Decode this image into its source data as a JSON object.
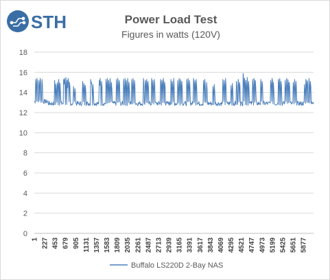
{
  "logo": {
    "text": "STH",
    "color": "#3a6ea5"
  },
  "chart_data": {
    "type": "line",
    "title": "Power Load Test",
    "subtitle": "Figures in watts (120V)",
    "xlabel": "",
    "ylabel": "",
    "ylim": [
      0,
      18
    ],
    "yticks": [
      0,
      2,
      4,
      6,
      8,
      10,
      12,
      14,
      16,
      18
    ],
    "xlim": [
      1,
      6100
    ],
    "xticks": [
      "1",
      "227",
      "453",
      "679",
      "905",
      "1131",
      "1357",
      "1583",
      "1809",
      "2035",
      "2261",
      "2487",
      "2713",
      "2939",
      "3165",
      "3391",
      "3617",
      "3843",
      "4069",
      "4295",
      "4521",
      "4747",
      "4973",
      "5199",
      "5425",
      "5651",
      "5877"
    ],
    "grid": true,
    "legend_position": "bottom",
    "series": [
      {
        "name": "Buffalo LS220D 2-Bay NAS",
        "color": "#4a7ebb",
        "baseline": 12.9,
        "spikes": [
          {
            "x": 30,
            "y": 15.3
          },
          {
            "x": 60,
            "y": 15.4
          },
          {
            "x": 95,
            "y": 15.2
          },
          {
            "x": 130,
            "y": 15.4
          },
          {
            "x": 165,
            "y": 15.3
          },
          {
            "x": 440,
            "y": 15.2
          },
          {
            "x": 470,
            "y": 14.8
          },
          {
            "x": 500,
            "y": 15.0
          },
          {
            "x": 530,
            "y": 15.3
          },
          {
            "x": 560,
            "y": 14.9
          },
          {
            "x": 640,
            "y": 15.3
          },
          {
            "x": 660,
            "y": 15.4
          },
          {
            "x": 690,
            "y": 15.5
          },
          {
            "x": 720,
            "y": 15.2
          },
          {
            "x": 740,
            "y": 15.4
          },
          {
            "x": 770,
            "y": 15.0
          },
          {
            "x": 860,
            "y": 14.6
          },
          {
            "x": 890,
            "y": 14.4
          },
          {
            "x": 1060,
            "y": 15.1
          },
          {
            "x": 1085,
            "y": 14.9
          },
          {
            "x": 1110,
            "y": 14.7
          },
          {
            "x": 1230,
            "y": 15.3
          },
          {
            "x": 1250,
            "y": 15.0
          },
          {
            "x": 1280,
            "y": 14.8
          },
          {
            "x": 1420,
            "y": 15.2
          },
          {
            "x": 1440,
            "y": 15.4
          },
          {
            "x": 1470,
            "y": 15.1
          },
          {
            "x": 1570,
            "y": 15.3
          },
          {
            "x": 1600,
            "y": 15.4
          },
          {
            "x": 1630,
            "y": 15.2
          },
          {
            "x": 1660,
            "y": 15.4
          },
          {
            "x": 1690,
            "y": 15.0
          },
          {
            "x": 1790,
            "y": 15.3
          },
          {
            "x": 1820,
            "y": 15.4
          },
          {
            "x": 1850,
            "y": 15.2
          },
          {
            "x": 1950,
            "y": 15.3
          },
          {
            "x": 1980,
            "y": 15.4
          },
          {
            "x": 2010,
            "y": 15.2
          },
          {
            "x": 2040,
            "y": 15.4
          },
          {
            "x": 2070,
            "y": 15.0
          },
          {
            "x": 2130,
            "y": 15.3
          },
          {
            "x": 2160,
            "y": 15.4
          },
          {
            "x": 2190,
            "y": 15.2
          },
          {
            "x": 2390,
            "y": 15.4
          },
          {
            "x": 2420,
            "y": 15.2
          },
          {
            "x": 2450,
            "y": 15.3
          },
          {
            "x": 2480,
            "y": 15.1
          },
          {
            "x": 2560,
            "y": 15.4
          },
          {
            "x": 2590,
            "y": 15.2
          },
          {
            "x": 2620,
            "y": 15.3
          },
          {
            "x": 2760,
            "y": 15.3
          },
          {
            "x": 2790,
            "y": 15.2
          },
          {
            "x": 2820,
            "y": 15.4
          },
          {
            "x": 2850,
            "y": 15.0
          },
          {
            "x": 2990,
            "y": 15.3
          },
          {
            "x": 3020,
            "y": 15.1
          },
          {
            "x": 3050,
            "y": 15.4
          },
          {
            "x": 3130,
            "y": 15.2
          },
          {
            "x": 3160,
            "y": 15.4
          },
          {
            "x": 3190,
            "y": 15.3
          },
          {
            "x": 3220,
            "y": 15.1
          },
          {
            "x": 3330,
            "y": 15.3
          },
          {
            "x": 3360,
            "y": 15.4
          },
          {
            "x": 3390,
            "y": 15.2
          },
          {
            "x": 3480,
            "y": 15.4
          },
          {
            "x": 3510,
            "y": 15.2
          },
          {
            "x": 3540,
            "y": 15.3
          },
          {
            "x": 3700,
            "y": 15.2
          },
          {
            "x": 3730,
            "y": 15.3
          },
          {
            "x": 3760,
            "y": 15.0
          },
          {
            "x": 3900,
            "y": 14.6
          },
          {
            "x": 3930,
            "y": 14.8
          },
          {
            "x": 4120,
            "y": 15.3
          },
          {
            "x": 4150,
            "y": 15.2
          },
          {
            "x": 4180,
            "y": 15.4
          },
          {
            "x": 4300,
            "y": 14.7
          },
          {
            "x": 4330,
            "y": 14.9
          },
          {
            "x": 4420,
            "y": 15.1
          },
          {
            "x": 4450,
            "y": 15.3
          },
          {
            "x": 4480,
            "y": 15.0
          },
          {
            "x": 4560,
            "y": 15.9
          },
          {
            "x": 4590,
            "y": 15.4
          },
          {
            "x": 4620,
            "y": 15.2
          },
          {
            "x": 4650,
            "y": 15.5
          },
          {
            "x": 4680,
            "y": 15.1
          },
          {
            "x": 4770,
            "y": 15.3
          },
          {
            "x": 4800,
            "y": 15.4
          },
          {
            "x": 4830,
            "y": 15.2
          },
          {
            "x": 4950,
            "y": 15.3
          },
          {
            "x": 4980,
            "y": 15.1
          },
          {
            "x": 5160,
            "y": 15.2
          },
          {
            "x": 5190,
            "y": 15.4
          },
          {
            "x": 5220,
            "y": 15.0
          },
          {
            "x": 5330,
            "y": 15.3
          },
          {
            "x": 5360,
            "y": 15.4
          },
          {
            "x": 5390,
            "y": 15.1
          },
          {
            "x": 5480,
            "y": 15.2
          },
          {
            "x": 5510,
            "y": 15.4
          },
          {
            "x": 5540,
            "y": 15.3
          },
          {
            "x": 5570,
            "y": 15.0
          },
          {
            "x": 5660,
            "y": 15.0
          },
          {
            "x": 5690,
            "y": 15.3
          },
          {
            "x": 5720,
            "y": 15.1
          },
          {
            "x": 5900,
            "y": 14.8
          },
          {
            "x": 5930,
            "y": 15.3
          },
          {
            "x": 5960,
            "y": 15.2
          },
          {
            "x": 6000,
            "y": 15.4
          },
          {
            "x": 6030,
            "y": 15.1
          }
        ]
      }
    ]
  }
}
